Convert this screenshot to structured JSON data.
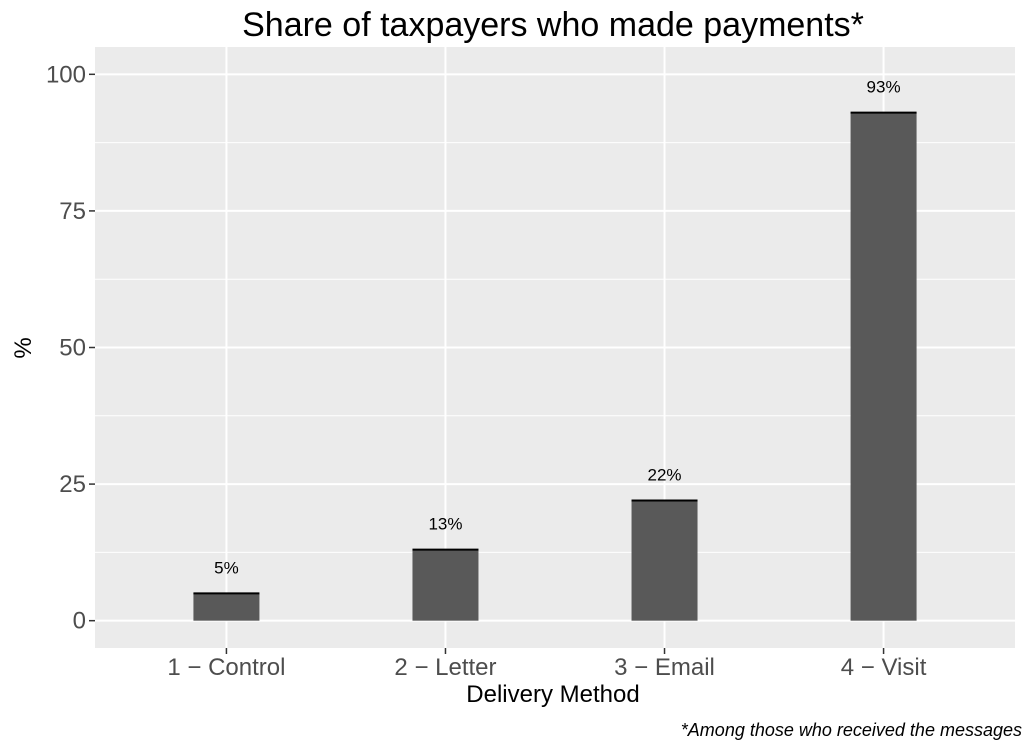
{
  "chart_data": {
    "type": "bar",
    "title": "Share of taxpayers who made payments*",
    "xlabel": "Delivery Method",
    "ylabel": "%",
    "categories": [
      "1 − Control",
      "2 − Letter",
      "3 − Email",
      "4 − Visit"
    ],
    "values": [
      5,
      13,
      22,
      93
    ],
    "value_labels": [
      "5%",
      "13%",
      "22%",
      "93%"
    ],
    "yticks": [
      0,
      25,
      50,
      75,
      100
    ],
    "ytick_labels": [
      "0",
      "25",
      "50",
      "75",
      "100"
    ],
    "ylim": [
      -5,
      105
    ],
    "grid": true,
    "legend": "none",
    "caption": "*Among those who received the messages",
    "colors": {
      "panel": "#ebebeb",
      "grid": "#ffffff",
      "bar": "#595959",
      "errorbar": "#000000",
      "tick_text": "#4d4d4d",
      "text": "#000000"
    }
  }
}
